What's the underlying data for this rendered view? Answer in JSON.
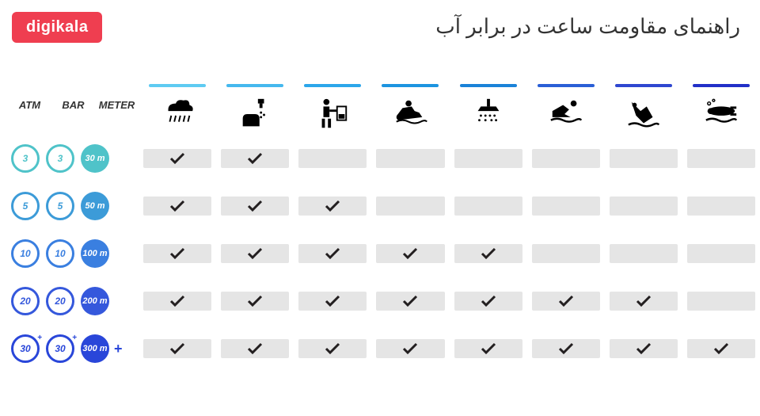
{
  "logo": "digikala",
  "title": "راهنمای مقاومت ساعت در برابر آب",
  "colors": {
    "logo_bg": "#ef3e50",
    "cell_bg": "#e5e5e5",
    "check": "#231f20"
  },
  "label_headers": [
    "ATM",
    "BAR",
    "METER"
  ],
  "activities": [
    {
      "name": "rain",
      "bar_color": "#5ecbf2"
    },
    {
      "name": "hand-wash",
      "bar_color": "#45b8ee"
    },
    {
      "name": "household",
      "bar_color": "#2ca6ea"
    },
    {
      "name": "jetski",
      "bar_color": "#1c94e0"
    },
    {
      "name": "shower",
      "bar_color": "#1a82d8"
    },
    {
      "name": "swimming",
      "bar_color": "#2a5fd6"
    },
    {
      "name": "snorkeling",
      "bar_color": "#2f47d0"
    },
    {
      "name": "scuba",
      "bar_color": "#2230c8"
    }
  ],
  "rows": [
    {
      "atm": "3",
      "bar": "3",
      "meter": "30 m",
      "color": "#4fc3c9",
      "plus": false,
      "checks": [
        true,
        true,
        false,
        false,
        false,
        false,
        false,
        false
      ]
    },
    {
      "atm": "5",
      "bar": "5",
      "meter": "50 m",
      "color": "#3c9bd8",
      "plus": false,
      "checks": [
        true,
        true,
        true,
        false,
        false,
        false,
        false,
        false
      ]
    },
    {
      "atm": "10",
      "bar": "10",
      "meter": "100 m",
      "color": "#3a7fe0",
      "plus": false,
      "checks": [
        true,
        true,
        true,
        true,
        true,
        false,
        false,
        false
      ]
    },
    {
      "atm": "20",
      "bar": "20",
      "meter": "200 m",
      "color": "#3558dc",
      "plus": false,
      "checks": [
        true,
        true,
        true,
        true,
        true,
        true,
        true,
        false
      ]
    },
    {
      "atm": "30",
      "bar": "30",
      "meter": "300 m",
      "color": "#2946d9",
      "plus": true,
      "checks": [
        true,
        true,
        true,
        true,
        true,
        true,
        true,
        true
      ]
    }
  ]
}
